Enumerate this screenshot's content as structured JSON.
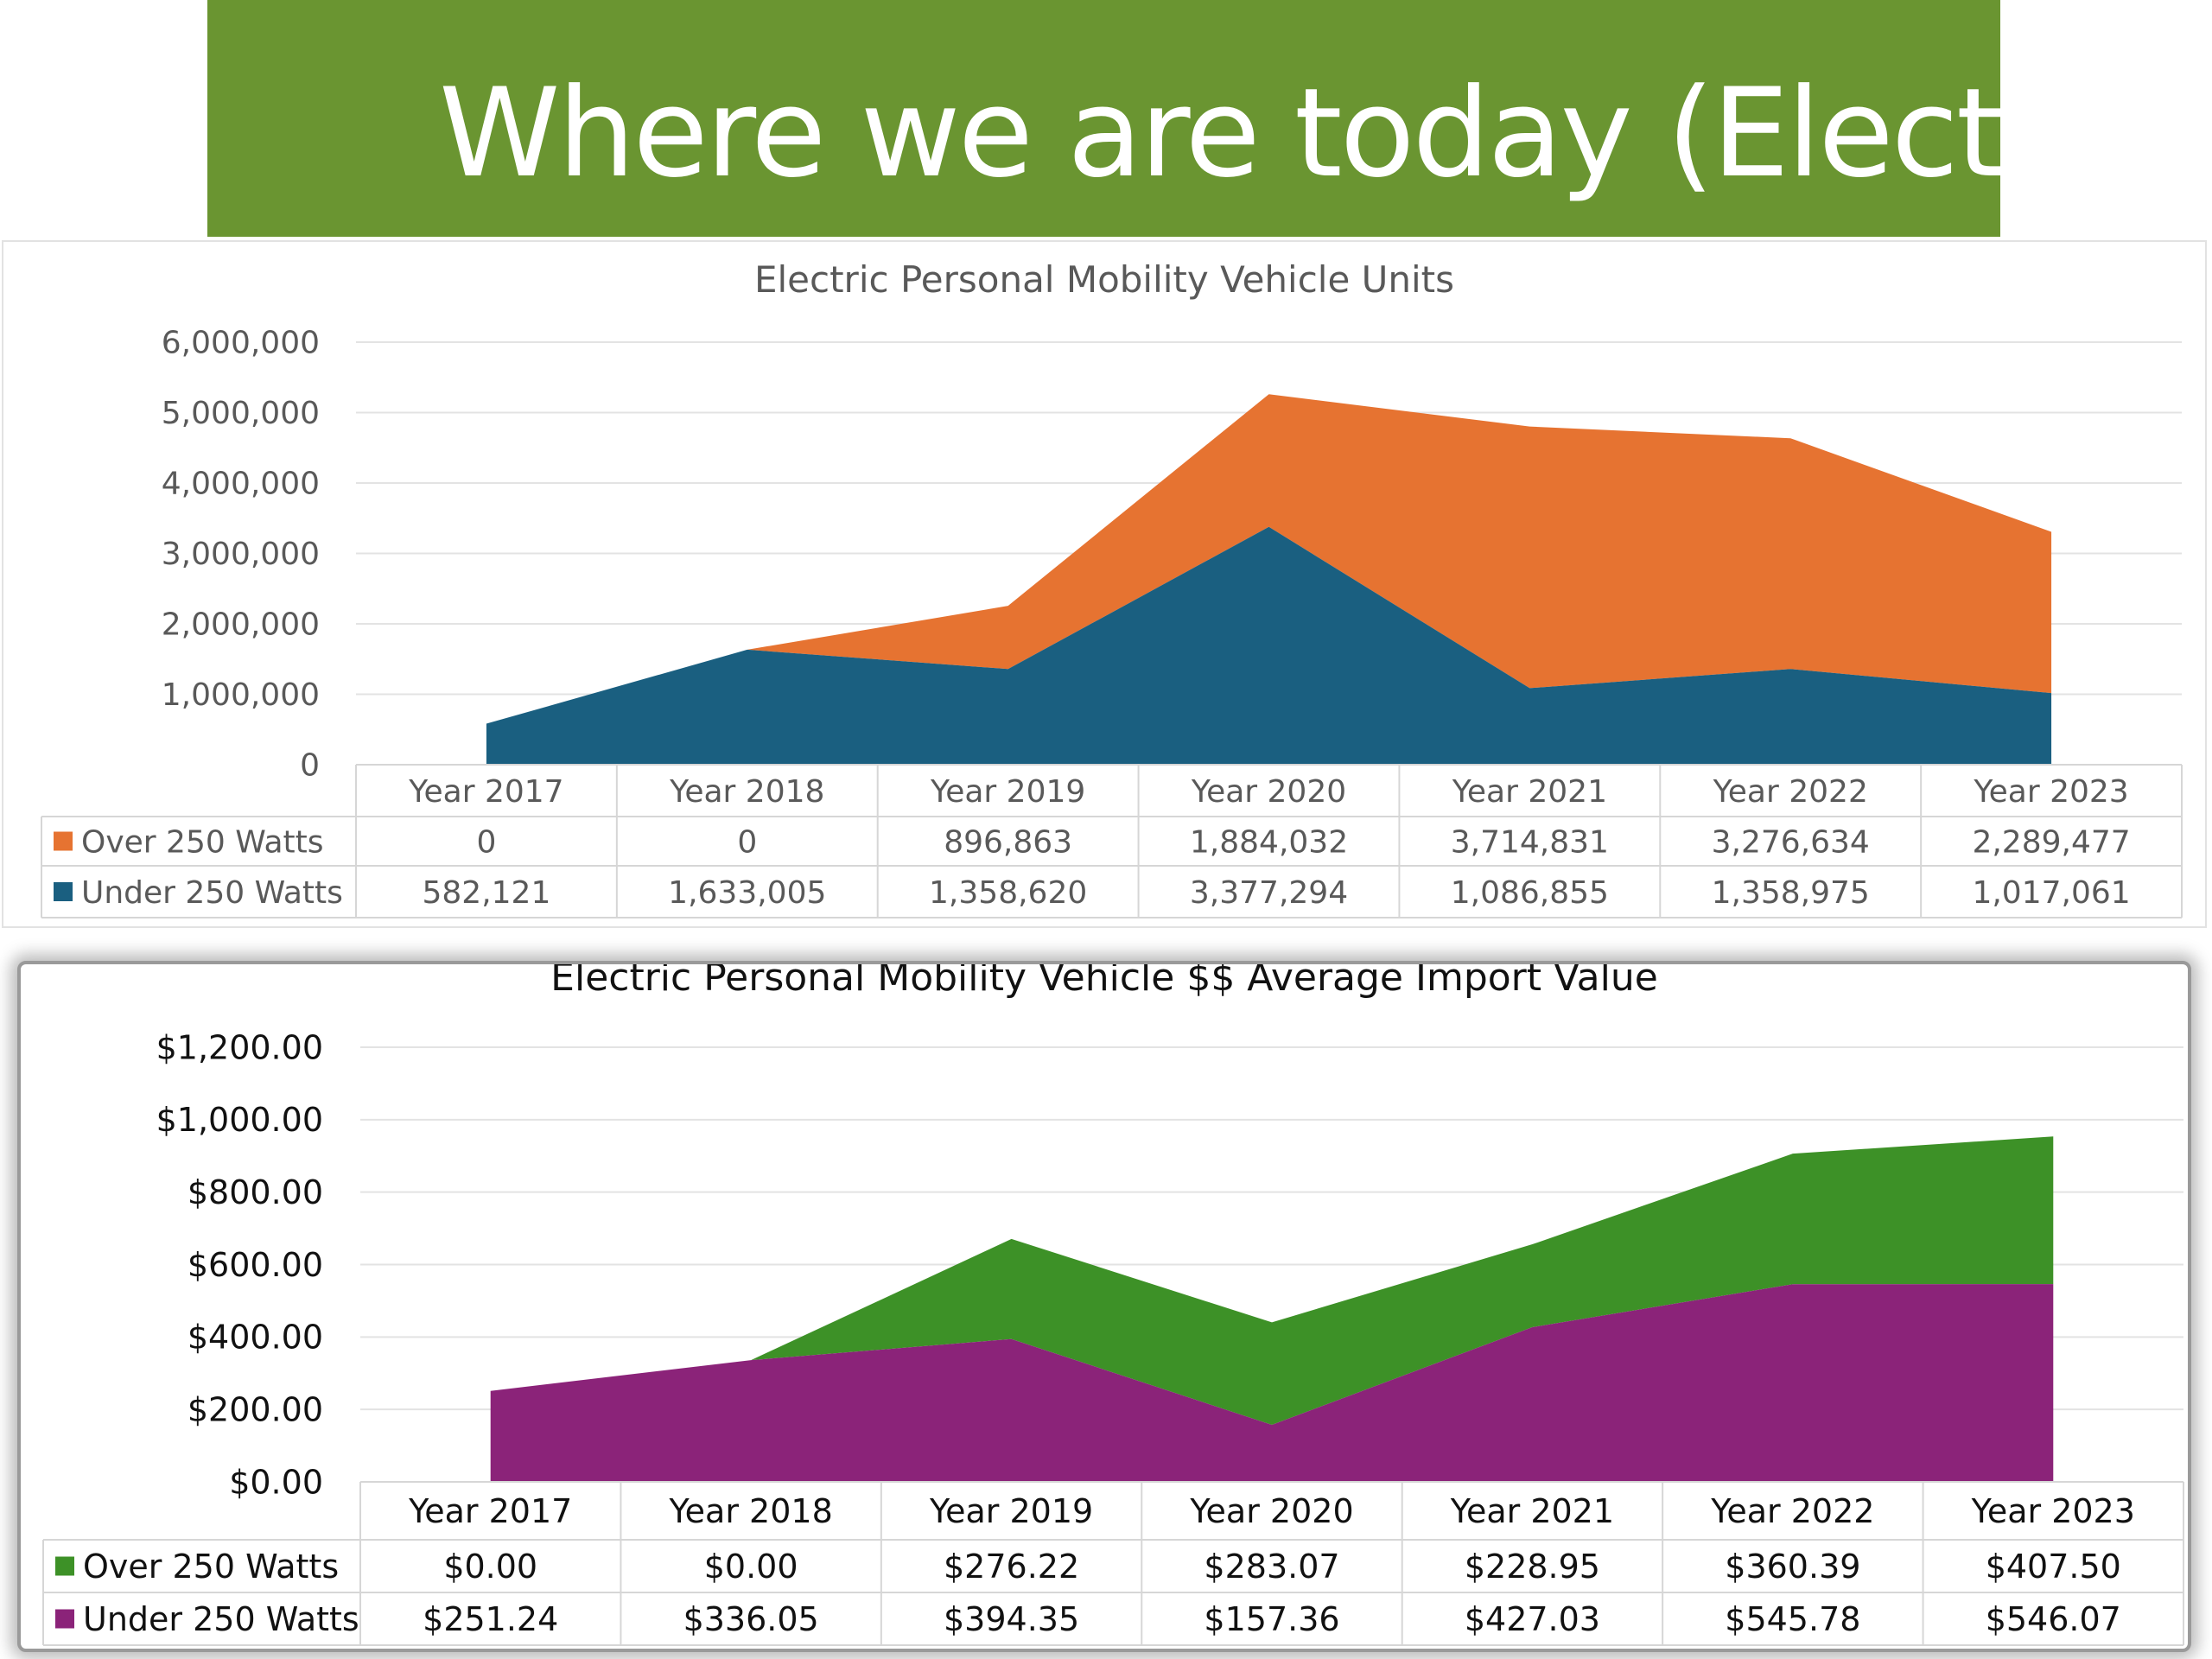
{
  "slide": {
    "title": "Where we are today (Electric)",
    "banner_color": "#6a9531"
  },
  "chart_data": [
    {
      "type": "area",
      "stacked": true,
      "title": "Electric Personal Mobility Vehicle Units",
      "categories": [
        "Year 2017",
        "Year 2018",
        "Year 2019",
        "Year 2020",
        "Year 2021",
        "Year 2022",
        "Year 2023"
      ],
      "series": [
        {
          "name": "Under 250 Watts",
          "values": [
            582121,
            1633005,
            1358620,
            3377294,
            1086855,
            1358975,
            1017061
          ],
          "labels": [
            "582,121",
            "1,633,005",
            "1,358,620",
            "3,377,294",
            "1,086,855",
            "1,358,975",
            "1,017,061"
          ],
          "color": "#1a5f80"
        },
        {
          "name": "Over 250 Watts",
          "values": [
            0,
            0,
            896863,
            1884032,
            3714831,
            3276634,
            2289477
          ],
          "labels": [
            "0",
            "0",
            "896,863",
            "1,884,032",
            "3,714,831",
            "3,276,634",
            "2,289,477"
          ],
          "color": "#e67331"
        }
      ],
      "table_order": [
        "Over 250 Watts",
        "Under 250 Watts"
      ],
      "ylim": [
        0,
        6000000
      ],
      "yticks": [
        0,
        1000000,
        2000000,
        3000000,
        4000000,
        5000000,
        6000000
      ],
      "ytick_labels": [
        "0",
        "1,000,000",
        "2,000,000",
        "3,000,000",
        "4,000,000",
        "5,000,000",
        "6,000,000"
      ],
      "grid": true,
      "legend": "data-table"
    },
    {
      "type": "area",
      "stacked": true,
      "title": "Electric Personal Mobility Vehicle $$ Average Import Value",
      "categories": [
        "Year 2017",
        "Year 2018",
        "Year 2019",
        "Year 2020",
        "Year 2021",
        "Year 2022",
        "Year 2023"
      ],
      "series": [
        {
          "name": "Under 250 Watts",
          "values": [
            251.24,
            336.05,
            394.35,
            157.36,
            427.03,
            545.78,
            546.07
          ],
          "labels": [
            "$251.24",
            "$336.05",
            "$394.35",
            "$157.36",
            "$427.03",
            "$545.78",
            "$546.07"
          ],
          "color": "#8b2379"
        },
        {
          "name": "Over 250 Watts",
          "values": [
            0,
            0,
            276.22,
            283.07,
            228.95,
            360.39,
            407.5
          ],
          "labels": [
            "$0.00",
            "$0.00",
            "$276.22",
            "$283.07",
            "$228.95",
            "$360.39",
            "$407.50"
          ],
          "color": "#3d9127"
        }
      ],
      "table_order": [
        "Over 250 Watts",
        "Under 250 Watts"
      ],
      "ylim": [
        0,
        1200
      ],
      "yticks": [
        0,
        200,
        400,
        600,
        800,
        1000,
        1200
      ],
      "ytick_labels": [
        "$0.00",
        "$200.00",
        "$400.00",
        "$600.00",
        "$800.00",
        "$1,000.00",
        "$1,200.00"
      ],
      "grid": true,
      "legend": "data-table"
    }
  ]
}
